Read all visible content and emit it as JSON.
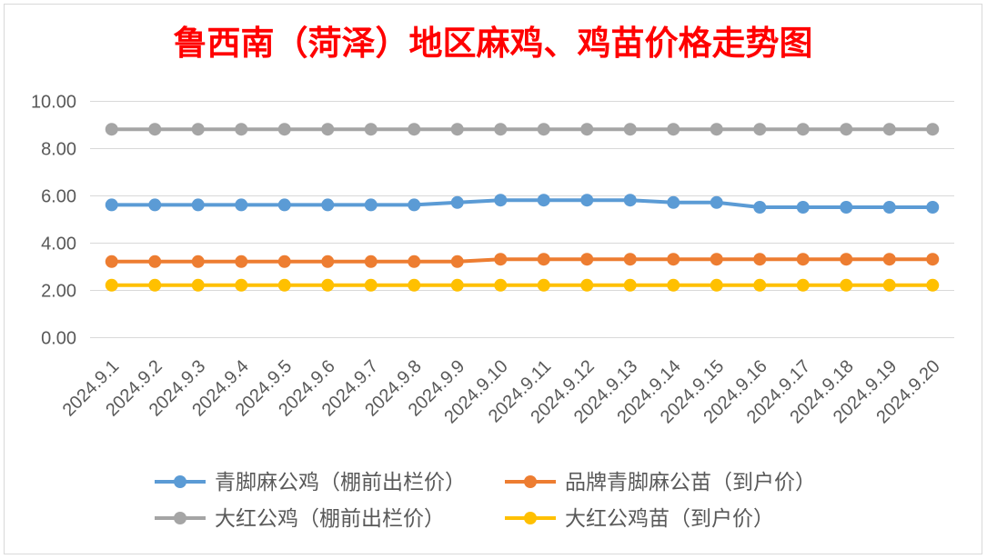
{
  "chart_data": {
    "type": "line",
    "title": "鲁西南（菏泽）地区麻鸡、鸡苗价格走势图",
    "title_color": "#ff0000",
    "categories": [
      "2024.9.1",
      "2024.9.2",
      "2024.9.3",
      "2024.9.4",
      "2024.9.5",
      "2024.9.6",
      "2024.9.7",
      "2024.9.8",
      "2024.9.9",
      "2024.9.10",
      "2024.9.11",
      "2024.9.12",
      "2024.9.13",
      "2024.9.14",
      "2024.9.15",
      "2024.9.16",
      "2024.9.17",
      "2024.9.18",
      "2024.9.19",
      "2024.9.20"
    ],
    "ylim": [
      0,
      10
    ],
    "ytick_labels": [
      "0.00",
      "2.00",
      "4.00",
      "6.00",
      "8.00",
      "10.00"
    ],
    "grid": true,
    "legend_position": "bottom",
    "series": [
      {
        "name": "青脚麻公鸡（棚前出栏价）",
        "color": "#5b9bd5",
        "values": [
          5.6,
          5.6,
          5.6,
          5.6,
          5.6,
          5.6,
          5.6,
          5.6,
          5.7,
          5.8,
          5.8,
          5.8,
          5.8,
          5.7,
          5.7,
          5.5,
          5.5,
          5.5,
          5.5,
          5.5
        ]
      },
      {
        "name": "品牌青脚麻公苗（到户价）",
        "color": "#ed7d31",
        "values": [
          3.2,
          3.2,
          3.2,
          3.2,
          3.2,
          3.2,
          3.2,
          3.2,
          3.2,
          3.3,
          3.3,
          3.3,
          3.3,
          3.3,
          3.3,
          3.3,
          3.3,
          3.3,
          3.3,
          3.3
        ]
      },
      {
        "name": "大红公鸡（棚前出栏价）",
        "color": "#a5a5a5",
        "values": [
          8.8,
          8.8,
          8.8,
          8.8,
          8.8,
          8.8,
          8.8,
          8.8,
          8.8,
          8.8,
          8.8,
          8.8,
          8.8,
          8.8,
          8.8,
          8.8,
          8.8,
          8.8,
          8.8,
          8.8
        ]
      },
      {
        "name": "大红公鸡苗（到户价）",
        "color": "#ffc000",
        "values": [
          2.2,
          2.2,
          2.2,
          2.2,
          2.2,
          2.2,
          2.2,
          2.2,
          2.2,
          2.2,
          2.2,
          2.2,
          2.2,
          2.2,
          2.2,
          2.2,
          2.2,
          2.2,
          2.2,
          2.2
        ]
      }
    ]
  }
}
